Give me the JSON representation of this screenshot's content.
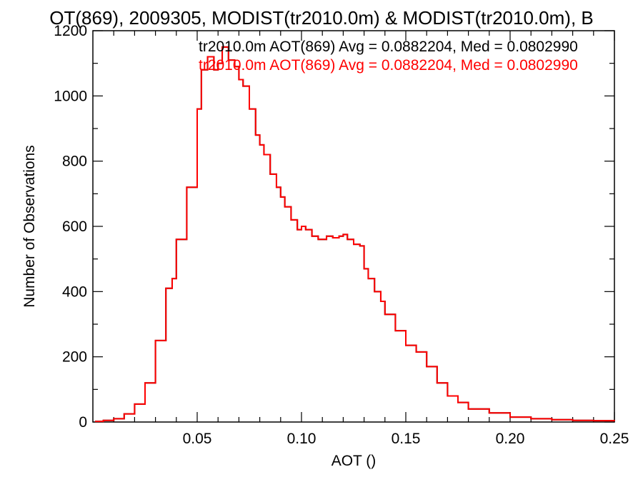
{
  "chart_data": {
    "type": "histogram",
    "title": "OT(869), 2009305, MODIST(tr2010.0m) & MODIST(tr2010.0m), B",
    "xlabel": "AOT ()",
    "ylabel": "Number of Observations",
    "xlim": [
      0.0,
      0.25
    ],
    "ylim": [
      0,
      1200
    ],
    "x_ticks": [
      {
        "value": 0.05,
        "label": "0.05"
      },
      {
        "value": 0.1,
        "label": "0.10"
      },
      {
        "value": 0.15,
        "label": "0.15"
      },
      {
        "value": 0.2,
        "label": "0.20"
      },
      {
        "value": 0.25,
        "label": "0.25"
      }
    ],
    "y_ticks": [
      {
        "value": 0,
        "label": "0"
      },
      {
        "value": 200,
        "label": "200"
      },
      {
        "value": 400,
        "label": "400"
      },
      {
        "value": 600,
        "label": "600"
      },
      {
        "value": 800,
        "label": "800"
      },
      {
        "value": 1000,
        "label": "1000"
      },
      {
        "value": 1200,
        "label": "1200"
      }
    ],
    "grid": false,
    "legend_position": "top-right",
    "colors": {
      "series_1": "#000000",
      "series_2": "#ff0000",
      "axes": "#000000"
    },
    "series": [
      {
        "name": "tr2010.0m AOT(869) Avg = 0.0882204, Med = 0.0802990",
        "color": "#000000",
        "x": [
          0.001,
          0.005,
          0.01,
          0.015,
          0.02,
          0.025,
          0.03,
          0.035,
          0.038,
          0.04,
          0.045,
          0.05,
          0.052,
          0.055,
          0.058,
          0.06,
          0.062,
          0.065,
          0.068,
          0.07,
          0.072,
          0.075,
          0.078,
          0.08,
          0.082,
          0.085,
          0.088,
          0.09,
          0.092,
          0.095,
          0.098,
          0.1,
          0.102,
          0.105,
          0.108,
          0.11,
          0.112,
          0.115,
          0.118,
          0.12,
          0.122,
          0.125,
          0.128,
          0.13,
          0.132,
          0.135,
          0.138,
          0.14,
          0.145,
          0.15,
          0.155,
          0.16,
          0.165,
          0.17,
          0.175,
          0.18,
          0.19,
          0.2,
          0.21,
          0.22,
          0.23,
          0.24,
          0.25
        ],
        "values": [
          2,
          5,
          10,
          25,
          55,
          120,
          250,
          410,
          440,
          560,
          720,
          960,
          1080,
          1120,
          1080,
          1100,
          1150,
          1110,
          1090,
          1050,
          1030,
          960,
          880,
          850,
          820,
          760,
          720,
          690,
          660,
          620,
          590,
          600,
          590,
          570,
          560,
          560,
          570,
          565,
          570,
          575,
          560,
          545,
          540,
          470,
          440,
          400,
          370,
          330,
          280,
          235,
          215,
          170,
          120,
          80,
          60,
          40,
          28,
          15,
          10,
          7,
          5,
          4,
          3
        ]
      },
      {
        "name": "tr2010.0m AOT(869) Avg = 0.0882204, Med = 0.0802990",
        "color": "#ff0000",
        "x": [
          0.001,
          0.005,
          0.01,
          0.015,
          0.02,
          0.025,
          0.03,
          0.035,
          0.038,
          0.04,
          0.045,
          0.05,
          0.052,
          0.055,
          0.058,
          0.06,
          0.062,
          0.065,
          0.068,
          0.07,
          0.072,
          0.075,
          0.078,
          0.08,
          0.082,
          0.085,
          0.088,
          0.09,
          0.092,
          0.095,
          0.098,
          0.1,
          0.102,
          0.105,
          0.108,
          0.11,
          0.112,
          0.115,
          0.118,
          0.12,
          0.122,
          0.125,
          0.128,
          0.13,
          0.132,
          0.135,
          0.138,
          0.14,
          0.145,
          0.15,
          0.155,
          0.16,
          0.165,
          0.17,
          0.175,
          0.18,
          0.19,
          0.2,
          0.21,
          0.22,
          0.23,
          0.24,
          0.25
        ],
        "values": [
          2,
          5,
          10,
          25,
          55,
          120,
          250,
          410,
          440,
          560,
          720,
          960,
          1080,
          1120,
          1080,
          1100,
          1150,
          1110,
          1090,
          1050,
          1030,
          960,
          880,
          850,
          820,
          760,
          720,
          690,
          660,
          620,
          590,
          600,
          590,
          570,
          560,
          560,
          570,
          565,
          570,
          575,
          560,
          545,
          540,
          470,
          440,
          400,
          370,
          330,
          280,
          235,
          215,
          170,
          120,
          80,
          60,
          40,
          28,
          15,
          10,
          7,
          5,
          4,
          3
        ]
      }
    ]
  }
}
